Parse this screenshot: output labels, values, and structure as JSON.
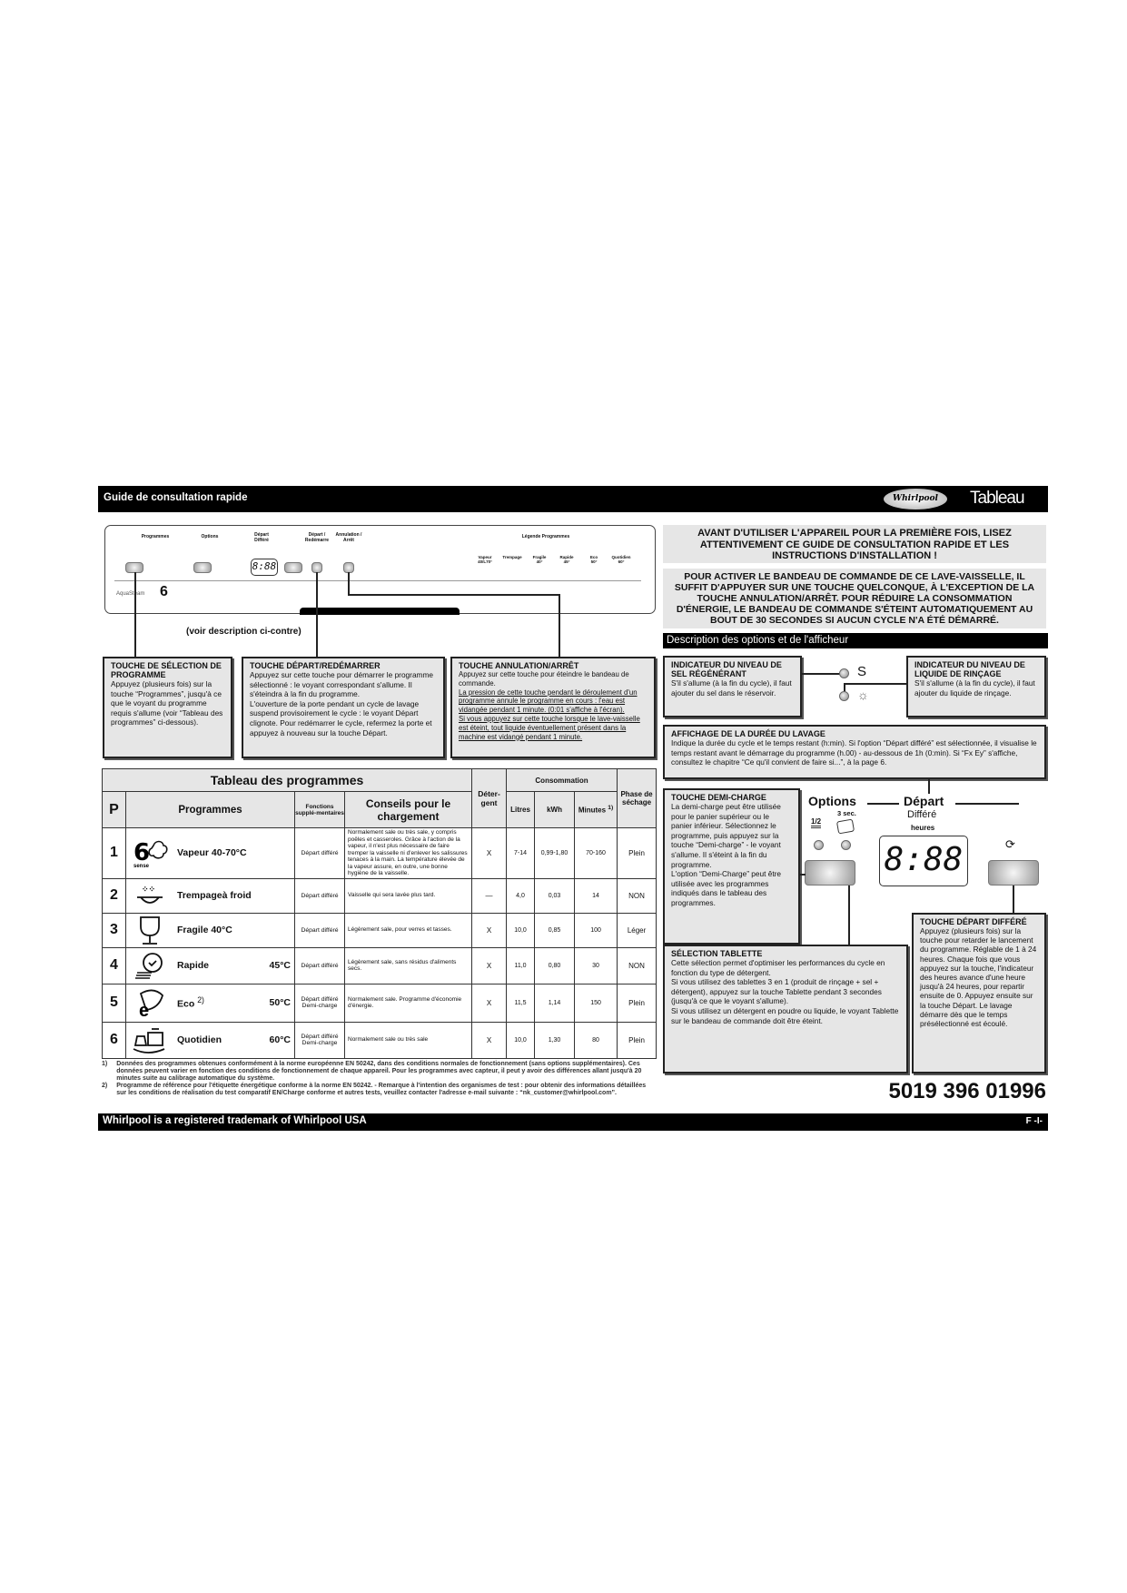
{
  "header": {
    "title": "Guide de consultation rapide",
    "brand": "Whirlpool",
    "right_title": "Tableau"
  },
  "panel": {
    "groups": [
      "Programmes",
      "Options",
      "Départ Différé",
      "Départ / Redémarre",
      "Annulation / Arrêt",
      "Légende Programmes"
    ],
    "display": "8:88",
    "heures": "heures",
    "legend": [
      {
        "name": "Vapeur",
        "temp": "40/L70°"
      },
      {
        "name": "Trempage",
        "temp": ""
      },
      {
        "name": "Fragile",
        "temp": "40°"
      },
      {
        "name": "Rapide",
        "temp": "45°"
      },
      {
        "name": "Eco",
        "temp": "50°"
      },
      {
        "name": "Quotidien",
        "temp": "60°"
      }
    ],
    "brand_badge": "AquaSteam",
    "sense": "6"
  },
  "voir": "(voir description ci-contre)",
  "boxes": {
    "selection": {
      "title": "TOUCHE DE SÉLECTION DE PROGRAMME",
      "text": "Appuyez (plusieurs fois) sur la touche “Programmes”, jusqu'à ce que le voyant du programme requis s'allume (voir “Tableau des programmes” ci-dessous)."
    },
    "depart": {
      "title": "TOUCHE DÉPART/REDÉMARRER",
      "p1": "Appuyez sur cette touche pour démarrer le programme sélectionné : le voyant correspondant s'allume. Il s'éteindra à la fin du programme.",
      "p2": "L'ouverture de la porte pendant un cycle de lavage suspend provisoirement le cycle : le voyant Départ clignote. Pour redémarrer le cycle, refermez la porte et appuyez à nouveau sur la touche Départ."
    },
    "annulation": {
      "title": "TOUCHE ANNULATION/ARRÊT",
      "p1": "Appuyez sur cette touche pour éteindre le bandeau de commande.",
      "p2": "La pression de cette touche pendant le déroulement d'un programme annule le programme en cours : l'eau est vidangée pendant 1 minute. (0:01 s'affiche à l'écran).",
      "p3": "Si vous appuyez sur cette touche lorsque le lave-vaisselle est éteint, tout liquide éventuellement présent dans la machine est vidangé pendant 1 minute."
    }
  },
  "table": {
    "title": "Tableau des programmes",
    "headers": {
      "p": "P",
      "programmes": "Programmes",
      "fonctions": "Fonctions supplé-mentaires",
      "conseils": "Conseils pour le chargement",
      "detergent": "Déter-gent",
      "consommation": "Consommation",
      "litres": "Litres",
      "kwh": "kWh",
      "minutes": "Minutes",
      "minutes_note": "1)",
      "phase": "Phase de séchage"
    },
    "rows": [
      {
        "p": "1",
        "icon": "6th-sense-steam-icon",
        "name": "Vapeur 40-70°C",
        "temp": "",
        "fonctions": "Départ différé",
        "conseils": "Normalement sale ou très sale, y compris poêles et casseroles. Grâce à l'action de la vapeur, il n'est plus nécessaire de faire tremper la vaisselle ni d'enlever les salissures tenaces à la main. La température élevée de la vapeur assure, en outre, une bonne hygiène de la vaisselle.",
        "detergent": "X",
        "litres": "7-14",
        "kwh": "0,99-1,80",
        "minutes": "70-160",
        "phase": "Plein"
      },
      {
        "p": "2",
        "icon": "soak-icon",
        "name": "Trempageà froid",
        "temp": "",
        "fonctions": "Départ différé",
        "conseils": "Vaisselle qui sera lavée plus tard.",
        "detergent": "—",
        "litres": "4,0",
        "kwh": "0,03",
        "minutes": "14",
        "phase": "NON"
      },
      {
        "p": "3",
        "icon": "glass-icon",
        "name": "Fragile 40°C",
        "temp": "",
        "fonctions": "Départ différé",
        "conseils": "Légèrement sale, pour verres et tasses.",
        "detergent": "X",
        "litres": "10,0",
        "kwh": "0,85",
        "minutes": "100",
        "phase": "Léger"
      },
      {
        "p": "4",
        "icon": "clock-plates-icon",
        "name": "Rapide",
        "temp": "45°C",
        "fonctions": "Départ différé",
        "conseils": "Légèrement sale, sans résidus d'aliments secs.",
        "detergent": "X",
        "litres": "11,0",
        "kwh": "0,80",
        "minutes": "30",
        "phase": "NON"
      },
      {
        "p": "5",
        "icon": "eco-leaf-icon",
        "name": "Eco",
        "note": "2)",
        "temp": "50°C",
        "fonctions": "Départ différé Demi-charge",
        "conseils": "Normalement sale. Programme d'économie d'énergie.",
        "detergent": "X",
        "litres": "11,5",
        "kwh": "1,14",
        "minutes": "150",
        "phase": "Plein"
      },
      {
        "p": "6",
        "icon": "pot-icon",
        "name": "Quotidien",
        "temp": "60°C",
        "fonctions": "Départ différé Demi-charge",
        "conseils": "Normalement sale ou très sale",
        "detergent": "X",
        "litres": "10,0",
        "kwh": "1,30",
        "minutes": "80",
        "phase": "Plein"
      }
    ]
  },
  "footnotes": [
    {
      "n": "1)",
      "text": "Données des programmes obtenues conformément à la norme européenne EN 50242, dans des conditions normales de fonctionnement (sans options supplémentaires). Ces données peuvent varier en fonction des conditions de fonctionnement de chaque appareil. Pour les programmes avec capteur, il peut y avoir des différences allant jusqu'à 20 minutes suite au calibrage automatique du système."
    },
    {
      "n": "2)",
      "text": "Programme de référence pour l'étiquette énergétique conforme à la norme EN 50242. - Remarque à l'intention des organismes de test : pour obtenir des informations détaillées sur les conditions de réalisation du test comparatif EN/Charge conforme et autres tests, veuillez contacter l'adresse e-mail suivante : “nk_customer@whirlpool.com”."
    }
  ],
  "warnings": [
    "AVANT D'UTILISER L'APPAREIL POUR LA PREMIÈRE FOIS, LISEZ ATTENTIVEMENT CE GUIDE DE CONSULTATION RAPIDE ET LES INSTRUCTIONS D'INSTALLATION !",
    "POUR ACTIVER LE BANDEAU DE COMMANDE DE CE LAVE-VAISSELLE, IL SUFFIT D'APPUYER SUR UNE TOUCHE QUELCONQUE, À L'EXCEPTION DE LA TOUCHE ANNULATION/ARRÊT. POUR RÉDUIRE LA CONSOMMATION D'ÉNERGIE, LE BANDEAU DE COMMANDE S'ÉTEINT AUTOMATIQUEMENT AU BOUT DE 30 SECONDES SI AUCUN CYCLE N'A ÉTÉ DÉMARRÉ."
  ],
  "description": {
    "title": "Description des options et de l'afficheur",
    "sel": {
      "title": "INDICATEUR DU NIVEAU DE SEL RÉGÉNÉRANT",
      "text": "S'il s'allume (à la fin du cycle), il faut ajouter du sel dans le réservoir.",
      "symbol": "S"
    },
    "rincage": {
      "title": "INDICATEUR DU NIVEAU DE LIQUIDE DE RINÇAGE",
      "text": "S'il s'allume (à la fin du cycle), il faut ajouter du liquide de rinçage.",
      "symbol": "☼"
    },
    "affichage": {
      "title": "AFFICHAGE DE LA DURÉE DU LAVAGE",
      "text": "Indique la durée du cycle et le temps restant (h:min). Si l'option “Départ différé” est sélectionnée, il visualise le temps restant avant le démarrage du programme (h.00) - au-dessous de 1h (0:min). Si “Fx Ey” s'affiche, consultez le chapitre “Ce qu'il convient de faire si...”, à la page 6."
    },
    "demi": {
      "title": "TOUCHE DEMI-CHARGE",
      "p1": "La demi-charge peut être utilisée pour le panier supérieur ou le panier inférieur. Sélectionnez le programme, puis appuyez sur la touche “Demi-charge” - le voyant s'allume. Il s'éteint à la fin du programme.",
      "p2": "L'option “Demi-Charge” peut être utilisée avec les programmes indiqués dans le tableau des programmes."
    },
    "options_label": "Options",
    "three_sec": "3 sec.",
    "half": "1/2",
    "depart_label": "Départ",
    "differe_label": "Différé",
    "heures": "heures",
    "display": "8:88",
    "tablette": {
      "title": "SÉLECTION TABLETTE",
      "p1": "Cette sélection permet d'optimiser les performances du cycle en fonction du type de détergent.",
      "p2": "Si vous utilisez des tablettes 3 en 1 (produit de rinçage + sel + détergent), appuyez sur la touche Tablette pendant 3 secondes (jusqu'à ce que le voyant s'allume).",
      "p3": "Si vous utilisez un détergent en poudre ou liquide, le voyant Tablette sur le bandeau de commande doit être éteint."
    },
    "differe": {
      "title": "TOUCHE DÉPART DIFFÉRÉ",
      "text": "Appuyez (plusieurs fois) sur la touche pour retarder le lancement du programme. Réglable de 1 à 24 heures. Chaque fois que vous appuyez sur la touche, l'indicateur des heures avance d'une heure jusqu'à 24 heures, pour repartir ensuite de 0. Appuyez ensuite sur la touche Départ. Le lavage démarre dès que le temps présélectionné est écoulé."
    }
  },
  "part_number": "5019 396 01996",
  "footer": {
    "trademark": "Whirlpool is a registered trademark of Whirlpool USA",
    "page": "F -I-"
  }
}
